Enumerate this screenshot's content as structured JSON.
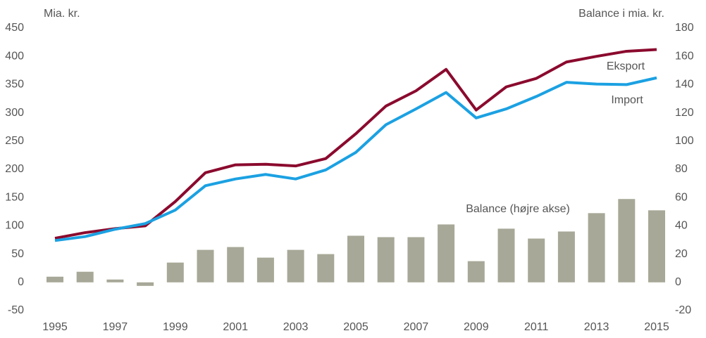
{
  "chart_data": {
    "type": "line",
    "y_label": "Mia. kr.",
    "y2_label": "Balance i mia. kr.",
    "categories": [
      "1995",
      null,
      "1997",
      null,
      "1999",
      null,
      "2001",
      null,
      "2003",
      null,
      "2005",
      null,
      "2007",
      null,
      "2009",
      null,
      "2011",
      null,
      "2013",
      null,
      "2015"
    ],
    "series": [
      {
        "name": "Balance (højre akse)",
        "type": "bar",
        "axis": "y2",
        "color": "#a8a898",
        "values": [
          4,
          7.5,
          2,
          -2.5,
          14,
          23,
          25,
          17.5,
          23,
          20,
          33,
          32,
          32,
          41,
          15,
          38,
          31,
          36,
          49,
          59,
          51
        ]
      },
      {
        "name": "Eksport",
        "type": "line",
        "color": "#8b0a2e",
        "values": [
          78,
          88,
          95,
          100,
          143,
          194,
          208,
          209,
          206,
          219,
          263,
          312,
          339,
          377,
          305,
          346,
          361,
          390,
          400,
          409,
          412
        ]
      },
      {
        "name": "Import",
        "type": "line",
        "color": "#1ba1e2",
        "values": [
          74,
          81,
          94,
          104,
          128,
          171,
          183,
          191,
          183,
          199,
          230,
          279,
          307,
          336,
          291,
          307,
          329,
          354,
          351,
          350,
          362
        ]
      }
    ],
    "ylim": [
      -50,
      450
    ],
    "yticks": [
      -50,
      0,
      50,
      100,
      150,
      200,
      250,
      300,
      350,
      400,
      450
    ],
    "y2lim": [
      -20,
      180
    ],
    "y2ticks": [
      -20,
      0,
      20,
      40,
      60,
      80,
      100,
      120,
      140,
      160,
      180
    ],
    "grid": false
  }
}
